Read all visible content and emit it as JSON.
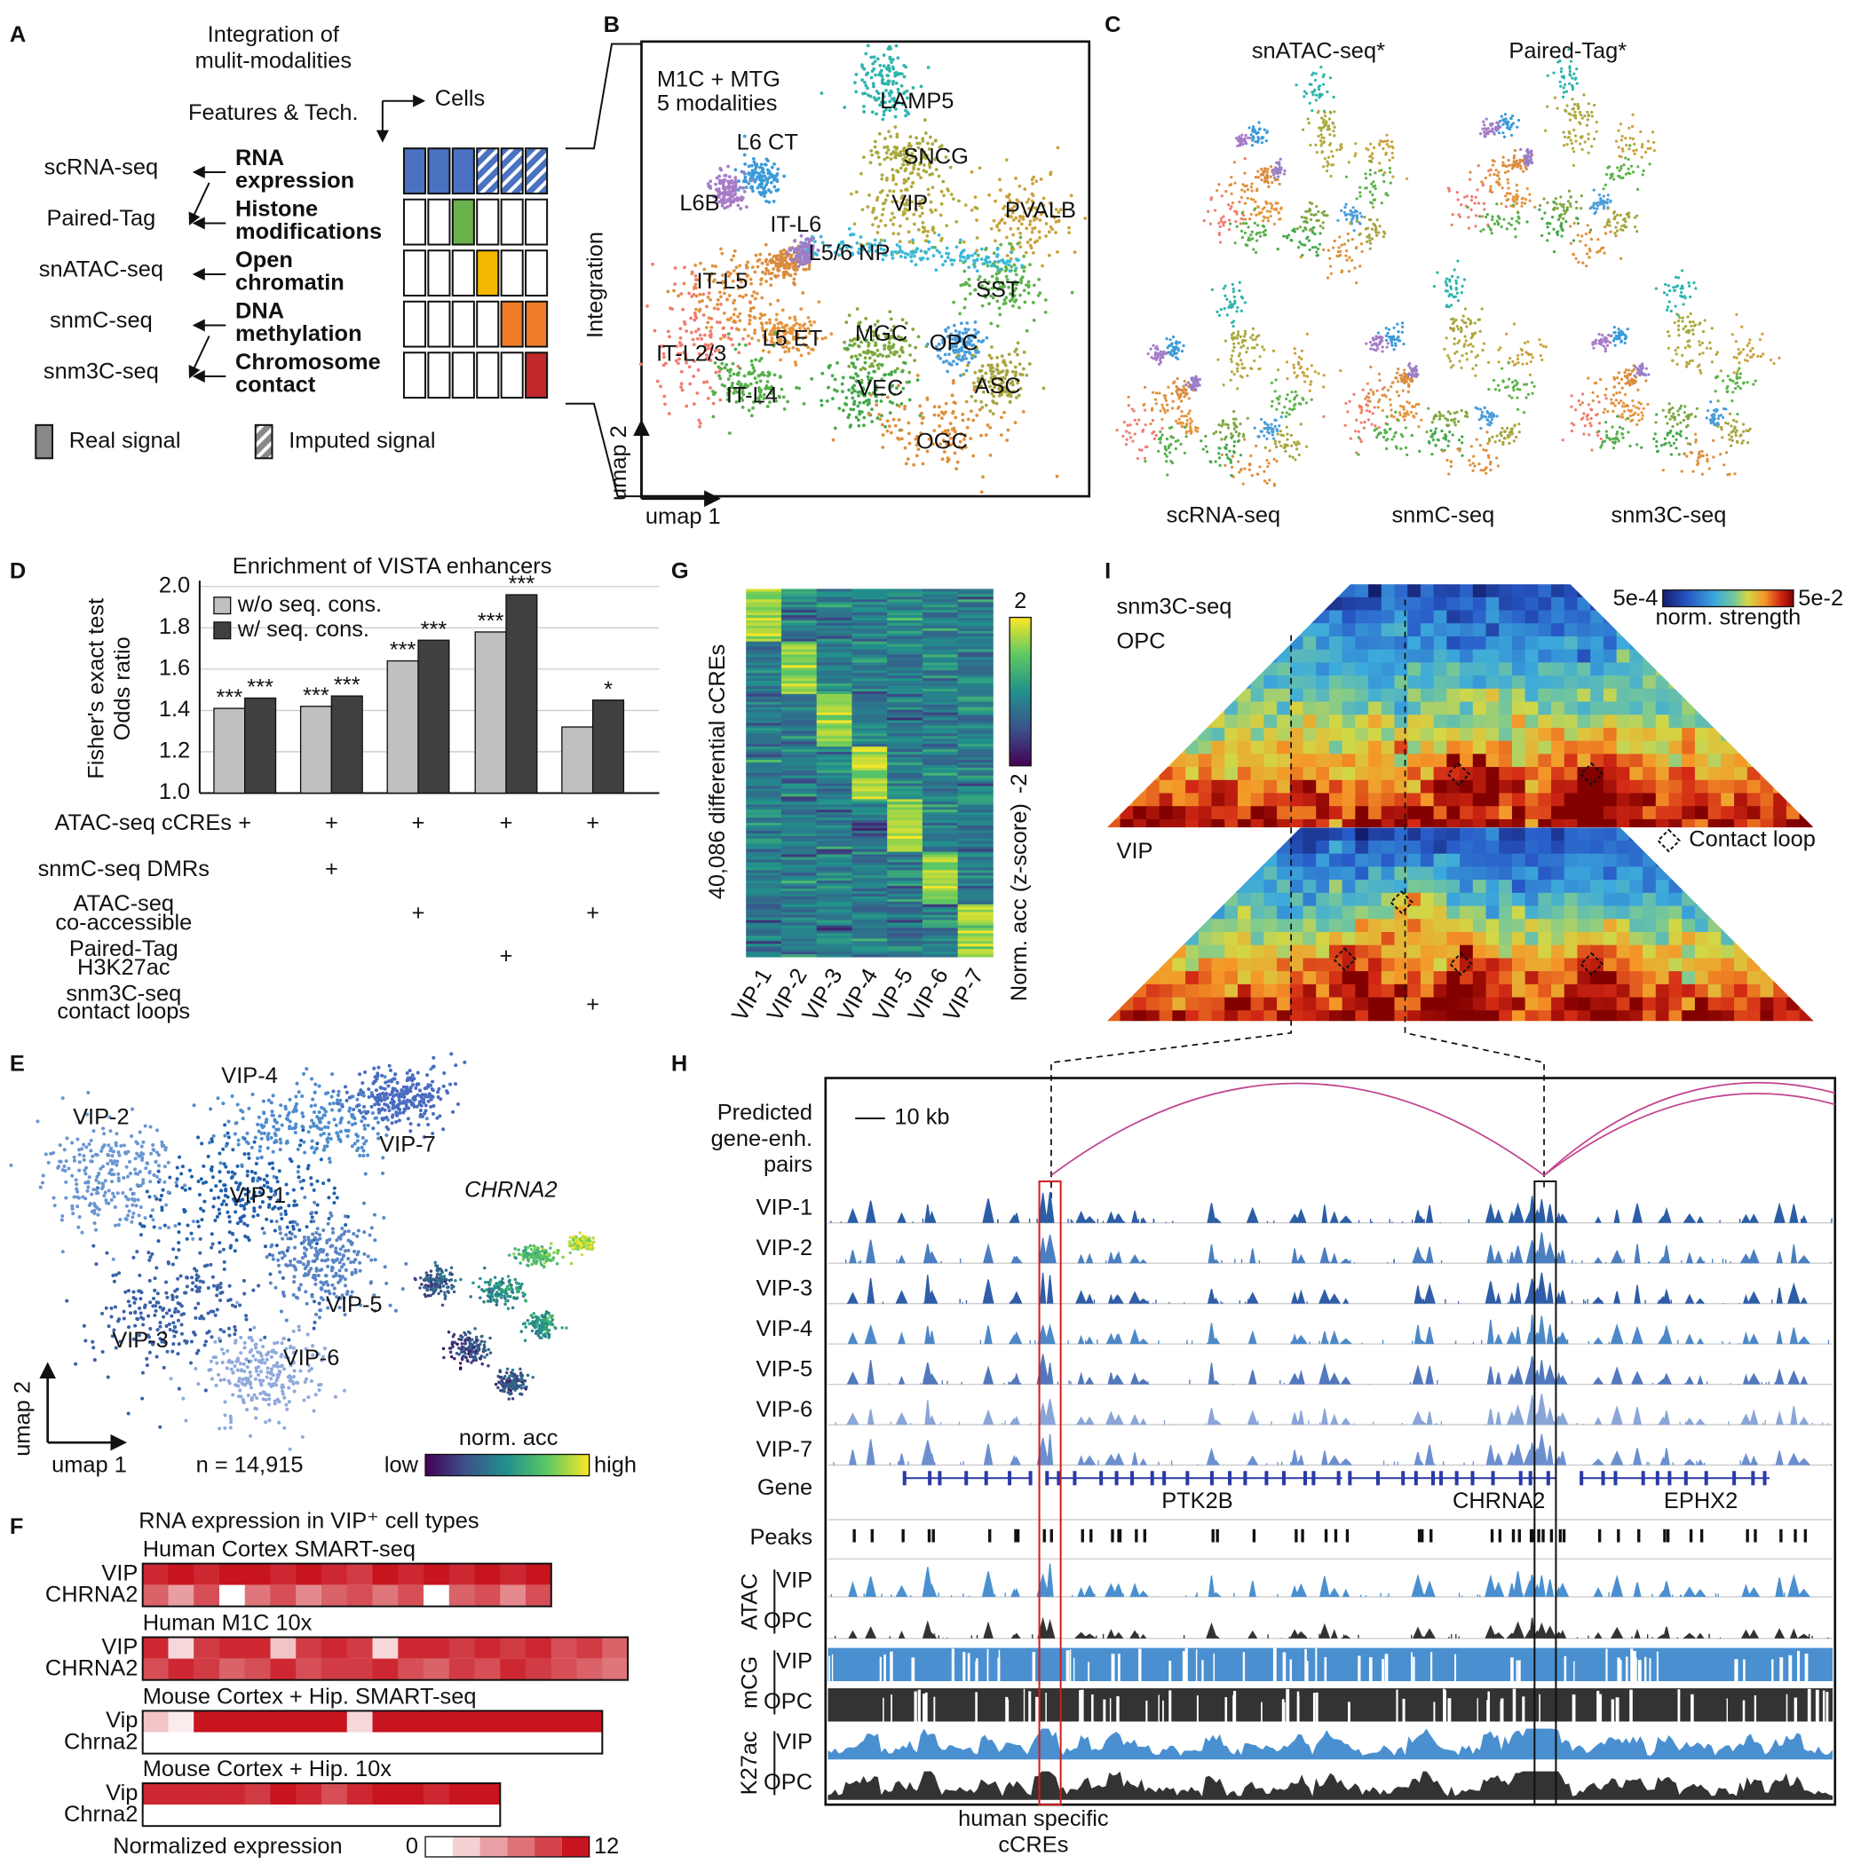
{
  "panel_labels": [
    "A",
    "B",
    "C",
    "D",
    "E",
    "F",
    "G",
    "H",
    "I"
  ],
  "panel_a": {
    "title": [
      "Integration of",
      "mulit-modalities"
    ],
    "features": "Features & Tech.",
    "cells": "Cells",
    "technologies": [
      "scRNA-seq",
      "Paired-Tag",
      "snATAC-seq",
      "snmC-seq",
      "snm3C-seq"
    ],
    "modalities": [
      {
        "lines": [
          "RNA",
          "expression"
        ],
        "color": "#4a72c0"
      },
      {
        "lines": [
          "Histone",
          "modifications"
        ],
        "color": "#6ab04c"
      },
      {
        "lines": [
          "Open",
          "chromatin"
        ],
        "color": "#f5b800"
      },
      {
        "lines": [
          "DNA",
          "methylation"
        ],
        "color": "#ef7d2a"
      },
      {
        "lines": [
          "Chromosome",
          "contact"
        ],
        "color": "#c0282c"
      }
    ],
    "legend": [
      "Real signal",
      "Imputed signal"
    ]
  },
  "panel_b": {
    "title": [
      "M1C + MTG",
      "5 modalities"
    ],
    "side_label": "Integration",
    "x_label": "umap 1",
    "y_label": "umap 2",
    "clusters": [
      {
        "name": "LAMP5",
        "color": "#2cb5ac"
      },
      {
        "name": "L6 CT",
        "color": "#3a9ad9"
      },
      {
        "name": "SNCG",
        "color": "#a9a83c"
      },
      {
        "name": "L6B",
        "color": "#a77cc7"
      },
      {
        "name": "VIP",
        "color": "#b5a93c"
      },
      {
        "name": "PVALB",
        "color": "#c9a23a"
      },
      {
        "name": "IT-L6",
        "color": "#d98c3f"
      },
      {
        "name": "L5/6 NP",
        "color": "#9b7fc6"
      },
      {
        "name": "IT-L5",
        "color": "#e0913e"
      },
      {
        "name": "SST",
        "color": "#5fb34b"
      },
      {
        "name": "IT-L2/3",
        "color": "#f07c6f"
      },
      {
        "name": "L5 ET",
        "color": "#e5953e"
      },
      {
        "name": "MGC",
        "color": "#7fa840"
      },
      {
        "name": "OPC",
        "color": "#4a9edb"
      },
      {
        "name": "IT-L4",
        "color": "#56b04a"
      },
      {
        "name": "VEC",
        "color": "#45a94c"
      },
      {
        "name": "ASC",
        "color": "#a7a53f"
      },
      {
        "name": "OGC",
        "color": "#df8e3a"
      }
    ]
  },
  "panel_c": {
    "top": [
      "snATAC-seq*",
      "Paired-Tag*"
    ],
    "bottom": [
      "scRNA-seq",
      "snmC-seq",
      "snm3C-seq"
    ]
  },
  "chart_data": {
    "type": "bar",
    "title": "Enrichment of VISTA enhancers",
    "y_label": [
      "Fisher's exact test",
      "Odds ratio"
    ],
    "categories": [
      null,
      null,
      null,
      null,
      null
    ],
    "series": [
      {
        "name": "w/o seq. cons.",
        "color": "#c0c0c0",
        "values": [
          1.41,
          1.42,
          1.64,
          1.78,
          1.32
        ],
        "significance": [
          "***",
          "***",
          "***",
          "***",
          null
        ]
      },
      {
        "name": "w/ seq. cons.",
        "color": "#404040",
        "values": [
          1.46,
          1.47,
          1.74,
          1.96,
          1.45
        ],
        "significance": [
          "***",
          "***",
          "***",
          "***",
          "*"
        ]
      }
    ],
    "ylim": [
      1.0,
      2.0
    ],
    "yticks": [
      {
        "value": 1.0,
        "label": "1.0"
      },
      1.2,
      1.4,
      1.6,
      1.8,
      {
        "value": 2.0,
        "label": "2.0"
      }
    ],
    "grid": true,
    "legend": "top-left",
    "conditions": [
      {
        "label": [
          "ATAC-seq cCREs"
        ],
        "marks": [
          "+",
          "+",
          "+",
          "+",
          "+"
        ]
      },
      {
        "label": [
          "snmC-seq DMRs"
        ],
        "marks": [
          null,
          "+",
          null,
          null,
          null
        ]
      },
      {
        "label": [
          "ATAC-seq",
          "co-accessible"
        ],
        "marks": [
          null,
          null,
          "+",
          null,
          "+"
        ]
      },
      {
        "label": [
          "Paired-Tag",
          "H3K27ac"
        ],
        "marks": [
          null,
          null,
          null,
          "+",
          null
        ]
      },
      {
        "label": [
          "snm3C-seq",
          "contact loops"
        ],
        "marks": [
          null,
          null,
          null,
          null,
          "+"
        ]
      }
    ]
  },
  "panel_e": {
    "clusters": [
      {
        "name": "VIP-1",
        "color": "#1f5fad"
      },
      {
        "name": "VIP-2",
        "color": "#6a96d2"
      },
      {
        "name": "VIP-3",
        "color": "#3a62a8"
      },
      {
        "name": "VIP-4",
        "color": "#4e8ccd"
      },
      {
        "name": "VIP-5",
        "color": "#5a85c5"
      },
      {
        "name": "VIP-6",
        "color": "#8ea9db"
      },
      {
        "name": "VIP-7",
        "color": "#4a6cc0"
      }
    ],
    "x_label": "umap 1",
    "y_label": "umap 2",
    "n": "n = 14,915",
    "gene": "CHRNA2",
    "colorbar": {
      "title": "norm. acc",
      "low": "low",
      "high": "high"
    }
  },
  "panel_f": {
    "title": "RNA expression in VIP⁺ cell types",
    "legend": "Normalized expression",
    "scale": [
      0,
      12
    ],
    "color": "#c8141e",
    "heatmaps": [
      {
        "title": "Human Cortex SMART-seq",
        "rows": [
          {
            "name": "VIP",
            "values": [
              11,
              12,
              11,
              12,
              12,
              11,
              12,
              11,
              10,
              12,
              11,
              12,
              11,
              12,
              11,
              12
            ]
          },
          {
            "name": "CHRNA2",
            "values": [
              8,
              5,
              9,
              0,
              7,
              9,
              6,
              8,
              9,
              7,
              9,
              0,
              8,
              9,
              6,
              9
            ]
          }
        ]
      },
      {
        "title": "Human M1C 10x",
        "rows": [
          {
            "name": "VIP",
            "values": [
              11,
              2,
              10,
              11,
              11,
              3,
              10,
              11,
              10,
              2,
              11,
              11,
              10,
              11,
              10,
              11,
              9,
              10,
              8
            ]
          },
          {
            "name": "CHRNA2",
            "values": [
              9,
              11,
              10,
              8,
              9,
              11,
              9,
              10,
              10,
              11,
              9,
              8,
              10,
              9,
              11,
              10,
              9,
              8,
              7
            ]
          }
        ]
      },
      {
        "title": "Mouse Cortex + Hip. SMART-seq",
        "rows": [
          {
            "name": "Vip",
            "values": [
              3,
              1,
              12,
              12,
              12,
              12,
              12,
              12,
              2,
              12,
              12,
              12,
              12,
              12,
              12,
              12,
              12,
              12
            ]
          },
          {
            "name": "Chrna2",
            "values": [
              0,
              0,
              0,
              0,
              0,
              0,
              0,
              0,
              0,
              0,
              0,
              0,
              0,
              0,
              0,
              0,
              0,
              0
            ]
          }
        ]
      },
      {
        "title": "Mouse Cortex + Hip. 10x",
        "rows": [
          {
            "name": "Vip",
            "values": [
              11,
              11,
              11,
              11,
              10,
              12,
              11,
              9,
              11,
              12,
              12,
              11,
              12,
              12
            ]
          },
          {
            "name": "Chrna2",
            "values": [
              0,
              0,
              0,
              0,
              0,
              0,
              0,
              0,
              0,
              0,
              0,
              0,
              0,
              0
            ]
          }
        ]
      }
    ]
  },
  "panel_g": {
    "y_label": "40,086 differential cCREs",
    "columns": [
      "VIP-1",
      "VIP-2",
      "VIP-3",
      "VIP-4",
      "VIP-5",
      "VIP-6",
      "VIP-7"
    ],
    "colorbar_title": "Norm. acc (z-score)",
    "colorbar_ticks": [
      "2",
      "-2"
    ]
  },
  "panel_h": {
    "pairs_label": [
      "Predicted",
      "gene-enh.",
      "pairs"
    ],
    "scale_bar": "10 kb",
    "tracks": [
      "VIP-1",
      "VIP-2",
      "VIP-3",
      "VIP-4",
      "VIP-5",
      "VIP-6",
      "VIP-7"
    ],
    "gene_label": "Gene",
    "peaks_label": "Peaks",
    "genes": [
      "PTK2B",
      "CHRNA2",
      "EPHX2"
    ],
    "groups": [
      {
        "name": "ATAC",
        "tracks": [
          "VIP",
          "OPC"
        ]
      },
      {
        "name": "mCG",
        "tracks": [
          "VIP",
          "OPC"
        ]
      },
      {
        "name": "K27ac",
        "tracks": [
          "VIP",
          "OPC"
        ]
      }
    ],
    "annotation": [
      "human specific",
      "cCREs"
    ]
  },
  "panel_i": {
    "labels": [
      "snm3C-seq",
      "OPC",
      "VIP"
    ],
    "legend": "Contact loop",
    "colorbar": {
      "min": "5e-4",
      "max": "5e-2",
      "title": "norm. strength"
    }
  }
}
